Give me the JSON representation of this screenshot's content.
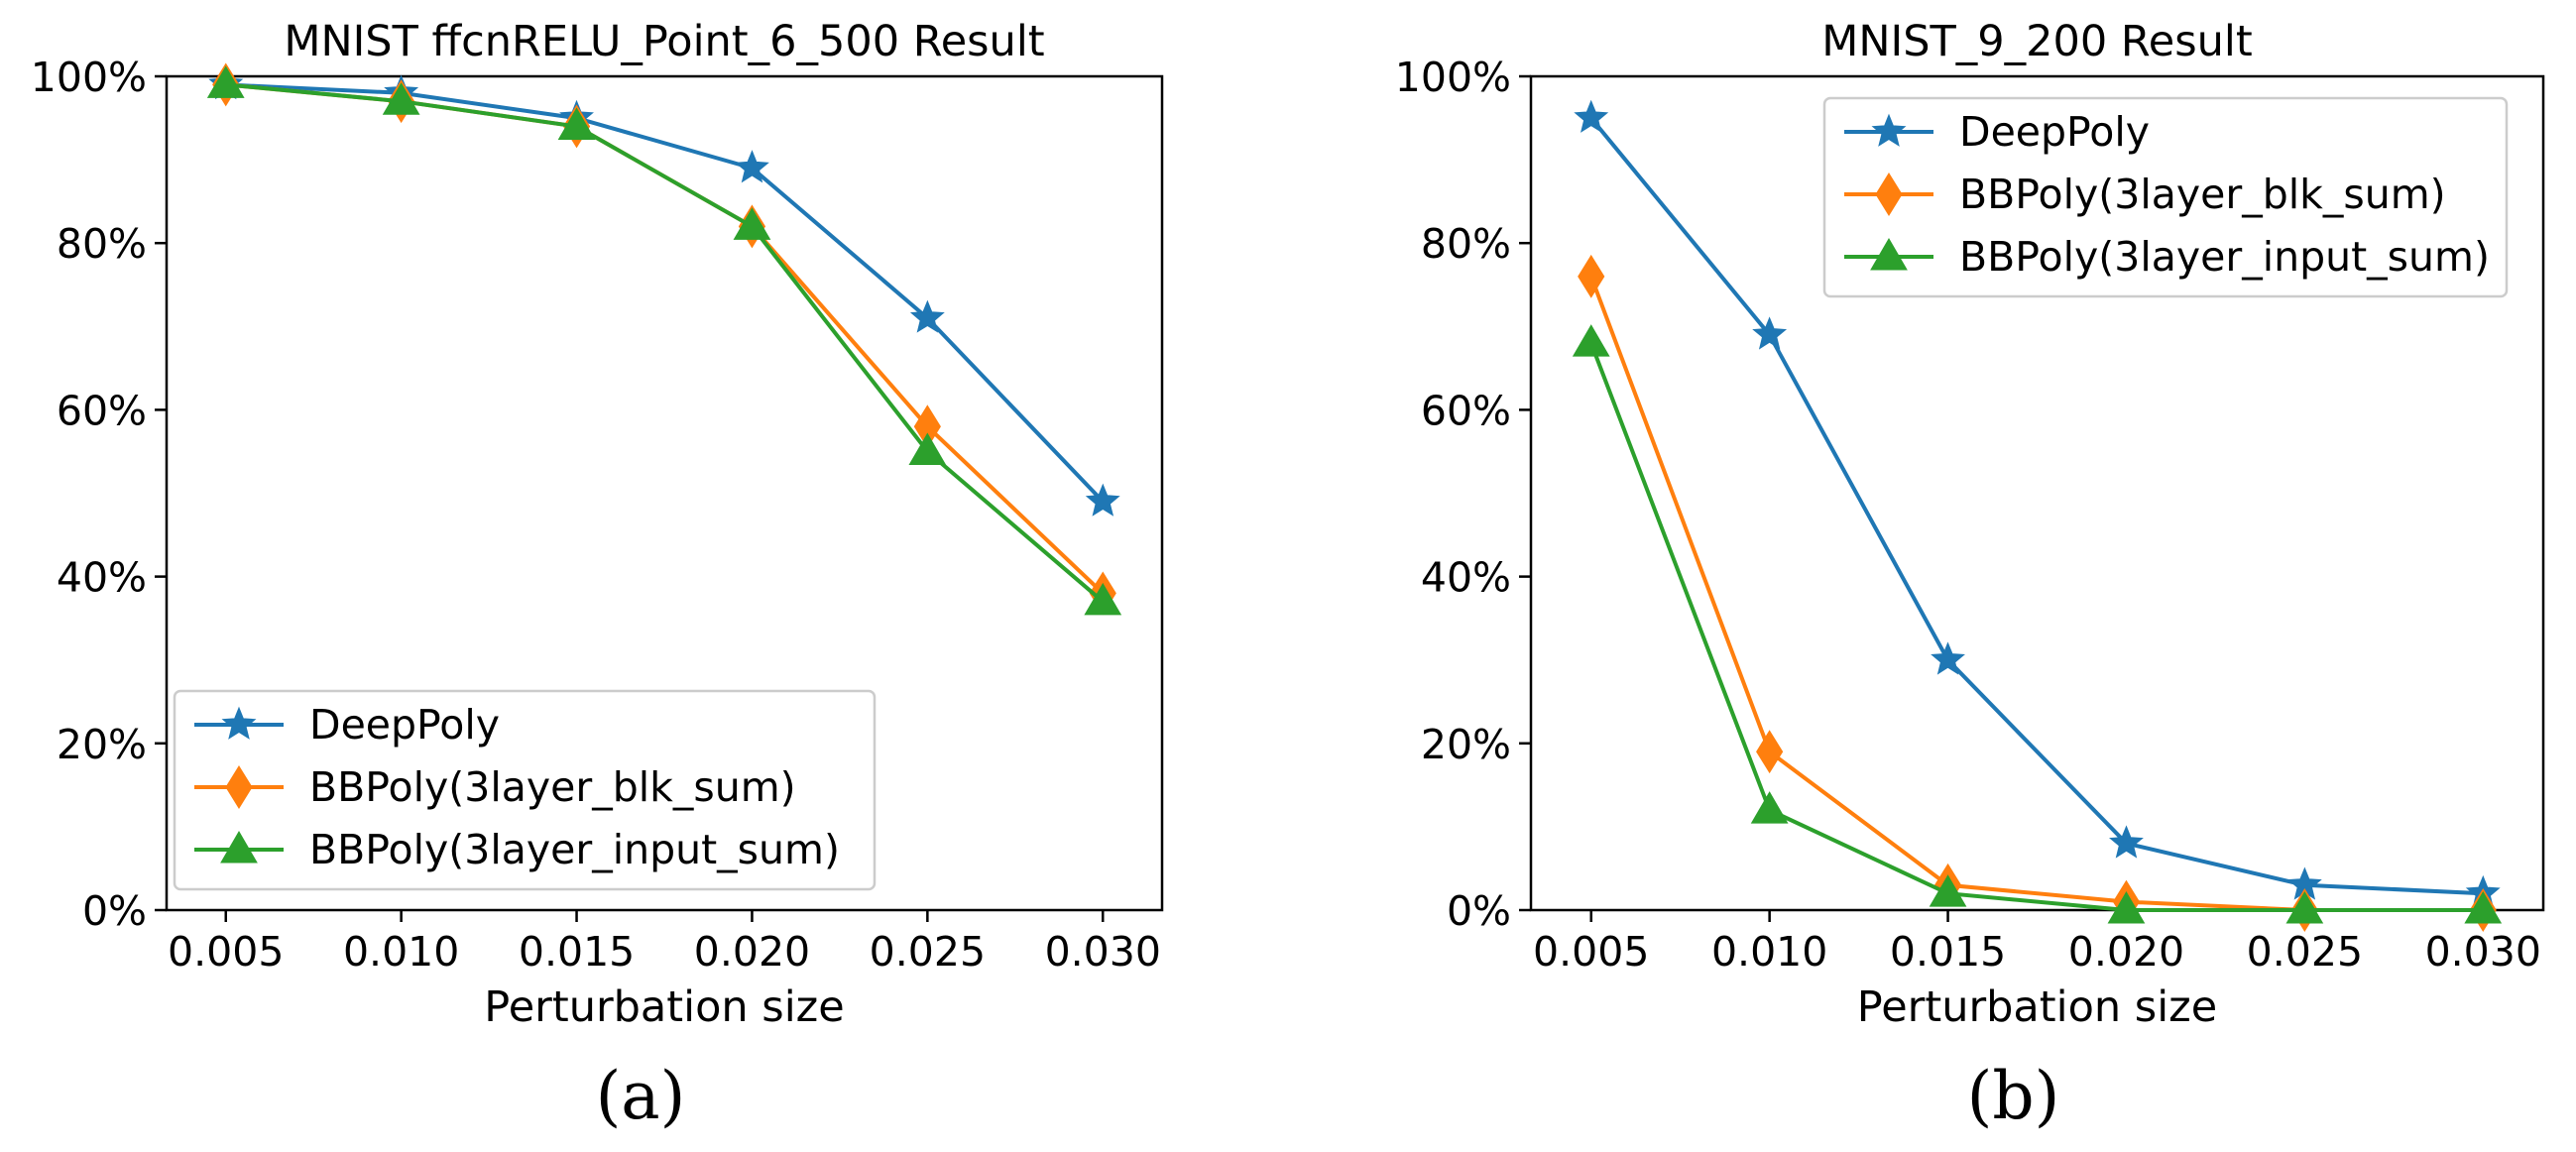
{
  "chart_data": [
    {
      "type": "line",
      "title": "MNIST ffcnRELU_Point_6_500 Result",
      "xlabel": "Perturbation size",
      "ylabel": "",
      "caption": "(a)",
      "x": [
        0.005,
        0.01,
        0.015,
        0.02,
        0.025,
        0.03
      ],
      "x_tick_labels": [
        "0.005",
        "0.010",
        "0.015",
        "0.020",
        "0.025",
        "0.030"
      ],
      "ylim": [
        0,
        100
      ],
      "y_ticks": [
        0,
        20,
        40,
        60,
        80,
        100
      ],
      "y_tick_labels": [
        "0%",
        "20%",
        "40%",
        "60%",
        "80%",
        "100%"
      ],
      "grid": false,
      "legend_position": "lower-left",
      "series": [
        {
          "name": "DeepPoly",
          "color": "#1f77b4",
          "marker": "star",
          "values": [
            99,
            98,
            95,
            89,
            71,
            49
          ]
        },
        {
          "name": "BBPoly(3layer_blk_sum)",
          "color": "#ff7f0e",
          "marker": "diamond",
          "values": [
            99,
            97,
            94,
            82,
            58,
            38
          ]
        },
        {
          "name": "BBPoly(3layer_input_sum)",
          "color": "#2ca02c",
          "marker": "triangle",
          "values": [
            99,
            97,
            94,
            82,
            55,
            37
          ]
        }
      ]
    },
    {
      "type": "line",
      "title": "MNIST_9_200 Result",
      "xlabel": "Perturbation size",
      "ylabel": "",
      "caption": "(b)",
      "x": [
        0.005,
        0.01,
        0.015,
        0.02,
        0.025,
        0.03
      ],
      "x_tick_labels": [
        "0.005",
        "0.010",
        "0.015",
        "0.020",
        "0.025",
        "0.030"
      ],
      "ylim": [
        0,
        100
      ],
      "y_ticks": [
        0,
        20,
        40,
        60,
        80,
        100
      ],
      "y_tick_labels": [
        "0%",
        "20%",
        "40%",
        "60%",
        "80%",
        "100%"
      ],
      "grid": false,
      "legend_position": "upper-right",
      "series": [
        {
          "name": "DeepPoly",
          "color": "#1f77b4",
          "marker": "star",
          "values": [
            95,
            69,
            30,
            8,
            3,
            2
          ]
        },
        {
          "name": "BBPoly(3layer_blk_sum)",
          "color": "#ff7f0e",
          "marker": "diamond",
          "values": [
            76,
            19,
            3,
            1,
            0,
            0
          ]
        },
        {
          "name": "BBPoly(3layer_input_sum)",
          "color": "#2ca02c",
          "marker": "triangle",
          "values": [
            68,
            12,
            2,
            0,
            0,
            0
          ]
        }
      ]
    }
  ]
}
